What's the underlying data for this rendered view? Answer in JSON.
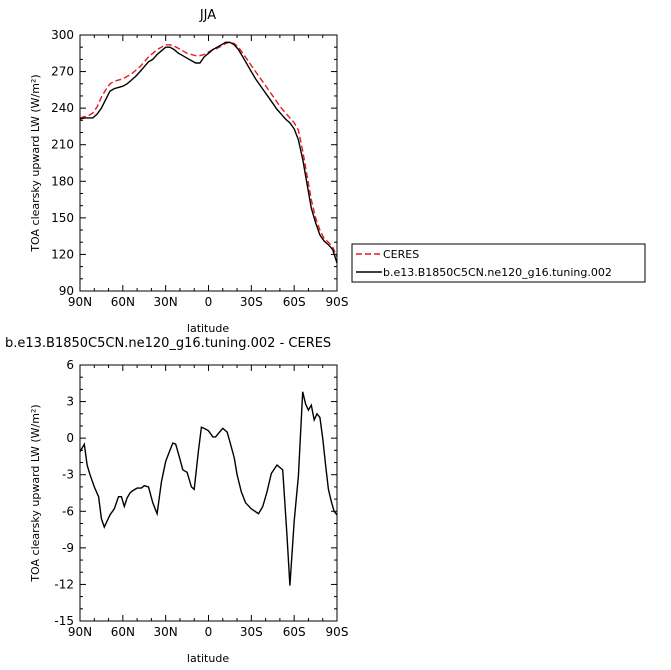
{
  "chart_data": [
    {
      "type": "line",
      "title": "JJA",
      "xlabel": "latitude",
      "ylabel": "TOA clearsky upward LW (W/m²)",
      "ylim": [
        90,
        300
      ],
      "yticks": [
        "90",
        "120",
        "150",
        "180",
        "210",
        "240",
        "270",
        "300"
      ],
      "xlim": [
        90,
        -90
      ],
      "xticks": [
        "90N",
        "60N",
        "30N",
        "0",
        "30S",
        "60S",
        "90S"
      ],
      "legend_position": "right",
      "series": [
        {
          "name": "CERES",
          "color": "#e8191c",
          "dash": "dashed",
          "x": [
            90,
            87,
            84,
            81,
            78,
            75,
            72,
            69,
            66,
            63,
            60,
            57,
            54,
            51,
            48,
            45,
            42,
            39,
            36,
            33,
            30,
            27,
            24,
            21,
            18,
            15,
            12,
            9,
            6,
            3,
            0,
            -3,
            -6,
            -9,
            -12,
            -15,
            -18,
            -21,
            -24,
            -27,
            -30,
            -33,
            -36,
            -39,
            -42,
            -45,
            -48,
            -51,
            -54,
            -57,
            -60,
            -63,
            -66,
            -69,
            -72,
            -75,
            -78,
            -81,
            -84,
            -87,
            -90
          ],
          "values": [
            232,
            233,
            234,
            236,
            241,
            249,
            255,
            260,
            262,
            263,
            264,
            266,
            268,
            271,
            274,
            278,
            282,
            285,
            288,
            290,
            292,
            292,
            291,
            289,
            287,
            285,
            284,
            283,
            283,
            284,
            286,
            288,
            289,
            291,
            293,
            294,
            293,
            290,
            285,
            280,
            275,
            270,
            265,
            260,
            255,
            250,
            245,
            240,
            236,
            232,
            228,
            222,
            205,
            185,
            165,
            150,
            140,
            133,
            130,
            126,
            118
          ]
        },
        {
          "name": "b.e13.B1850C5CN.ne120_g16.tuning.002",
          "color": "#000000",
          "dash": "solid",
          "x": [
            90,
            87,
            84,
            81,
            78,
            75,
            72,
            69,
            66,
            63,
            60,
            57,
            54,
            51,
            48,
            45,
            42,
            39,
            36,
            33,
            30,
            27,
            24,
            21,
            18,
            15,
            12,
            9,
            6,
            3,
            0,
            -3,
            -6,
            -9,
            -12,
            -15,
            -18,
            -21,
            -24,
            -27,
            -30,
            -33,
            -36,
            -39,
            -42,
            -45,
            -48,
            -51,
            -54,
            -57,
            -60,
            -63,
            -66,
            -69,
            -72,
            -75,
            -78,
            -81,
            -84,
            -87,
            -90
          ],
          "values": [
            231,
            232,
            232,
            232,
            235,
            240,
            247,
            254,
            256,
            257,
            258,
            260,
            263,
            266,
            270,
            274,
            278,
            280,
            284,
            287,
            290,
            290,
            288,
            285,
            283,
            281,
            279,
            277,
            277,
            282,
            285,
            288,
            290,
            292,
            294,
            294,
            292,
            288,
            282,
            276,
            270,
            264,
            259,
            254,
            249,
            244,
            239,
            235,
            231,
            228,
            223,
            214,
            198,
            178,
            158,
            146,
            136,
            131,
            128,
            124,
            113
          ]
        }
      ]
    },
    {
      "type": "line",
      "title": "b.e13.B1850C5CN.ne120_g16.tuning.002 - CERES",
      "xlabel": "latitude",
      "ylabel": "TOA clearsky upward LW (W/m²)",
      "ylim": [
        -15,
        6
      ],
      "yticks": [
        "-15",
        "-12",
        "-9",
        "-6",
        "-3",
        "0",
        "3",
        "6"
      ],
      "xlim": [
        90,
        -90
      ],
      "xticks": [
        "90N",
        "60N",
        "30N",
        "0",
        "30S",
        "60S",
        "90S"
      ],
      "series": [
        {
          "color": "#000000",
          "x": [
            90,
            87,
            85,
            83,
            80,
            77,
            75,
            73,
            71,
            69,
            66,
            63,
            61,
            59,
            57,
            55,
            53,
            50,
            47,
            45,
            42,
            39,
            36,
            33,
            30,
            28,
            25,
            23,
            20,
            18,
            15,
            12,
            10,
            7,
            5,
            3,
            0,
            -3,
            -5,
            -7,
            -10,
            -13,
            -15,
            -18,
            -20,
            -23,
            -26,
            -30,
            -35,
            -38,
            -41,
            -44,
            -48,
            -52,
            -55,
            -57,
            -60,
            -63,
            -66,
            -68,
            -70,
            -72,
            -74,
            -76,
            -78,
            -80,
            -82,
            -84,
            -86,
            -88,
            -90
          ],
          "values": [
            -1.1,
            -0.5,
            -2.2,
            -3.0,
            -4.0,
            -4.8,
            -6.6,
            -7.3,
            -6.8,
            -6.3,
            -5.8,
            -4.8,
            -4.8,
            -5.6,
            -4.9,
            -4.5,
            -4.3,
            -4.1,
            -4.1,
            -3.9,
            -4.0,
            -5.3,
            -6.2,
            -3.6,
            -1.9,
            -1.3,
            -0.4,
            -0.5,
            -1.7,
            -2.6,
            -2.8,
            -4.0,
            -4.2,
            -1.0,
            0.9,
            0.8,
            0.6,
            0.1,
            0.1,
            0.4,
            0.8,
            0.5,
            -0.3,
            -1.6,
            -3.0,
            -4.4,
            -5.3,
            -5.8,
            -6.2,
            -5.6,
            -4.4,
            -2.9,
            -2.2,
            -2.6,
            -8.0,
            -12.1,
            -6.8,
            -3.1,
            3.8,
            2.8,
            2.3,
            2.7,
            1.5,
            2.0,
            1.7,
            0.0,
            -2.2,
            -4.2,
            -5.2,
            -6.0,
            -6.3
          ]
        }
      ]
    }
  ]
}
